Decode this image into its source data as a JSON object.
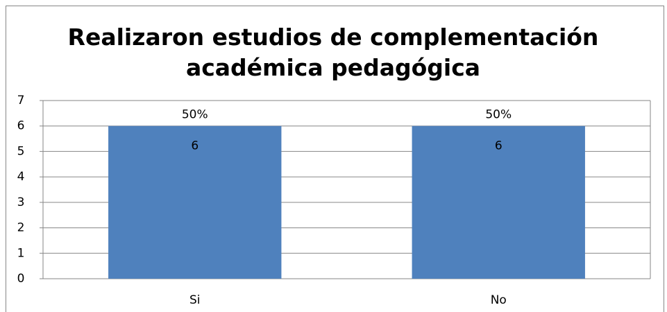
{
  "chart_data": {
    "type": "bar",
    "title": "Realizaron estudios de complementación académica pedagógica",
    "categories": [
      "Si",
      "No"
    ],
    "values": [
      6,
      6
    ],
    "percent_labels": [
      "50%",
      "50%"
    ],
    "color": "#4f81bd",
    "ylim": [
      0,
      7
    ],
    "yticks": [
      0,
      1,
      2,
      3,
      4,
      5,
      6,
      7
    ],
    "grid": true
  }
}
